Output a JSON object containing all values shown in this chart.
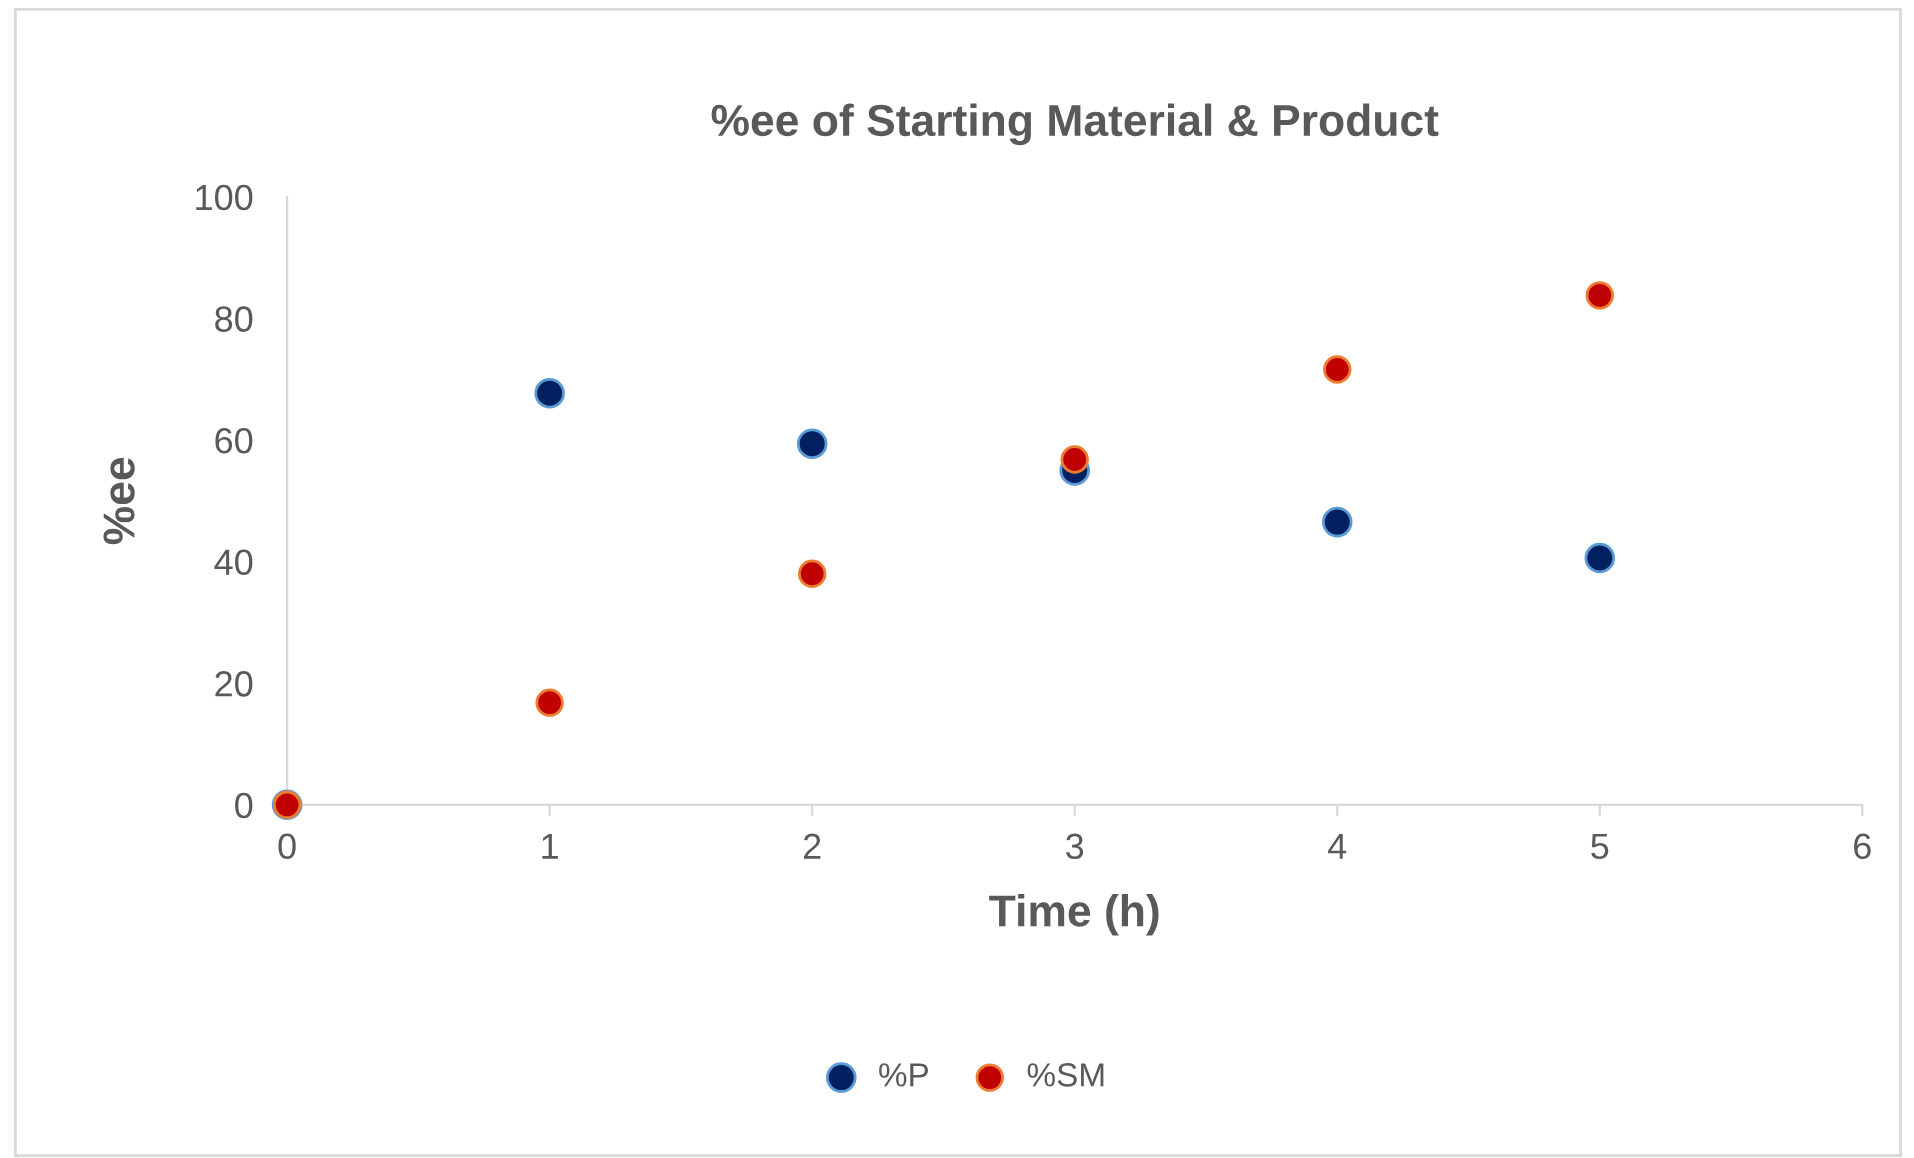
{
  "chart_data": {
    "type": "scatter",
    "title": "%ee of Starting Material & Product",
    "xlabel": "Time (h)",
    "ylabel": "%ee",
    "x": [
      0,
      1,
      2,
      3,
      4,
      5
    ],
    "series": [
      {
        "name": "%P",
        "color": "#002060",
        "values": [
          0,
          67.7,
          59.4,
          55,
          46.5,
          40.6
        ]
      },
      {
        "name": "%SM",
        "color": "#c00000",
        "values": [
          0,
          16.8,
          38,
          56.8,
          71.6,
          83.8
        ]
      }
    ],
    "xlim": [
      0,
      6
    ],
    "xticks": [
      0,
      1,
      2,
      3,
      4,
      5,
      6
    ],
    "ylim": [
      0,
      100
    ],
    "yticks": [
      0,
      20,
      40,
      60,
      80,
      100
    ],
    "grid": false,
    "legend": "bottom",
    "marker": "circle"
  }
}
